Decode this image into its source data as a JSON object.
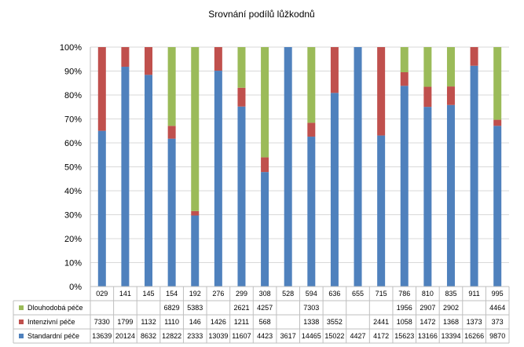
{
  "chart_data": {
    "type": "bar",
    "stacked": "percent",
    "title": "Srovnání podílů lůžkodnů",
    "categories": [
      "029",
      "141",
      "145",
      "154",
      "192",
      "276",
      "299",
      "308",
      "528",
      "594",
      "636",
      "655",
      "715",
      "786",
      "810",
      "835",
      "911",
      "995"
    ],
    "y_ticks": [
      "0%",
      "10%",
      "20%",
      "30%",
      "40%",
      "50%",
      "60%",
      "70%",
      "80%",
      "90%",
      "100%"
    ],
    "ylim": [
      0,
      100
    ],
    "grid": true,
    "series": [
      {
        "name": "Standardní péče",
        "color": "#4f81bd",
        "values": [
          13639,
          20124,
          8632,
          12822,
          2333,
          13039,
          11607,
          4423,
          3617,
          14465,
          15022,
          4427,
          4172,
          15623,
          13166,
          13394,
          16266,
          9870
        ]
      },
      {
        "name": "Intenzivní péče",
        "color": "#c0504d",
        "values": [
          7330,
          1799,
          1132,
          1110,
          146,
          1426,
          1211,
          568,
          null,
          1338,
          3552,
          null,
          2441,
          1058,
          1472,
          1368,
          1373,
          373
        ]
      },
      {
        "name": "Dlouhodobá péče",
        "color": "#9bbb59",
        "values": [
          null,
          null,
          null,
          6829,
          5383,
          null,
          2621,
          4257,
          null,
          7303,
          null,
          null,
          null,
          1956,
          2907,
          2902,
          null,
          4464
        ]
      }
    ]
  }
}
